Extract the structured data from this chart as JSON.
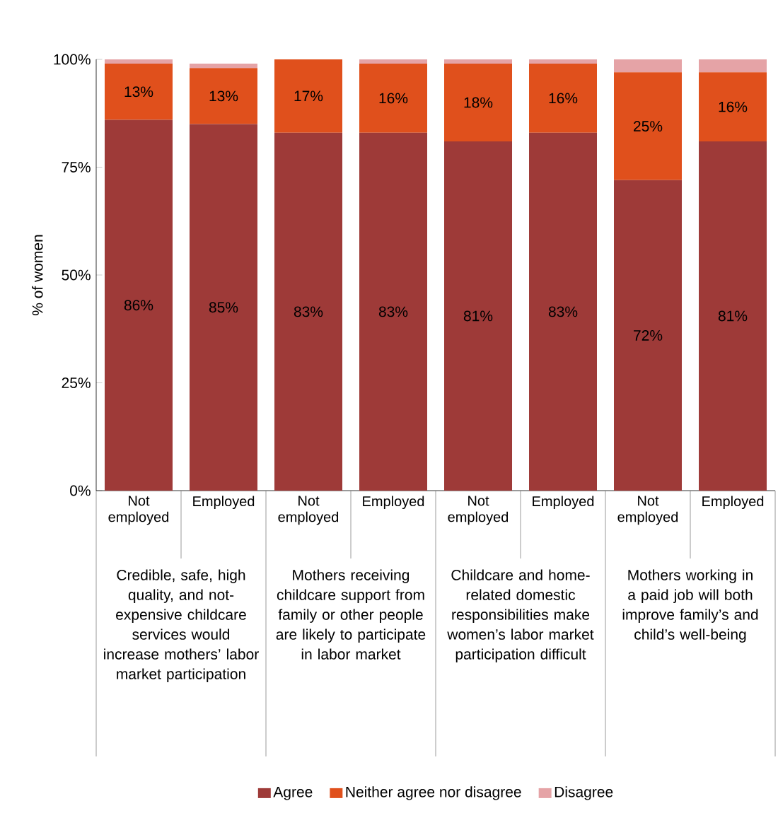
{
  "chart_data": {
    "type": "bar",
    "stacked": true,
    "ylabel": "% of women",
    "categories": [
      "Not employed",
      "Employed",
      "Not employed",
      "Employed",
      "Not employed",
      "Employed",
      "Not employed",
      "Employed"
    ],
    "annotations": [
      "Credible, safe, high quality, and not-expensive childcare services would increase mothers’ labor market participation",
      "Mothers receiving childcare support from family or other people are likely to participate in labor market",
      "Childcare and home-related domestic responsibilities make women’s labor market participation difficult",
      "Mothers working in a paid job will both improve family’s and child’s well-being"
    ],
    "series": [
      {
        "name": "Agree",
        "color": "#9e3a38",
        "values": [
          86,
          85,
          83,
          83,
          81,
          83,
          72,
          81
        ],
        "value_labels": [
          "86%",
          "85%",
          "83%",
          "83%",
          "81%",
          "83%",
          "72%",
          "81%"
        ]
      },
      {
        "name": "Neither agree nor disagree",
        "color": "#e0501c",
        "values": [
          13,
          13,
          17,
          16,
          18,
          16,
          25,
          16
        ],
        "value_labels": [
          "13%",
          "13%",
          "17%",
          "16%",
          "18%",
          "16%",
          "25%",
          "16%"
        ]
      },
      {
        "name": "Disagree",
        "color": "#e5a3a6",
        "values": [
          1,
          1,
          0,
          1,
          1,
          1,
          3,
          3
        ]
      }
    ],
    "ylim": [
      0,
      100
    ],
    "yticks": [
      {
        "value": 0,
        "label": "0%"
      },
      {
        "value": 25,
        "label": "25%"
      },
      {
        "value": 50,
        "label": "50%"
      },
      {
        "value": 75,
        "label": "75%"
      },
      {
        "value": 100,
        "label": "100%"
      }
    ],
    "legend": "bottom",
    "grid": false
  }
}
